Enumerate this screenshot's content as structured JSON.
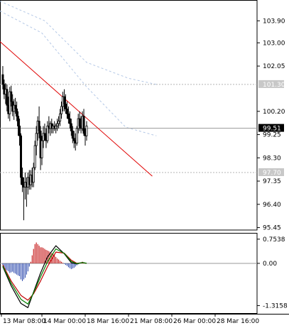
{
  "colors": {
    "background": "#ffffff",
    "frame": "#000000",
    "candle_body": "#000000",
    "candle_wick": "#000000",
    "trendline": "#e00000",
    "ma_slow": "#b4c8e6",
    "ma_fast": "#b4c8e6",
    "level_line": "#b4b4b4",
    "current_price_line": "#9a9a9a",
    "current_price_tag": "#000000",
    "level_tag": "#c8c8c8",
    "hist_positive": "#c00000",
    "hist_negative": "#1f3ea8",
    "macd_line": "#000000",
    "signal_line": "#c00000",
    "third_line": "#008000",
    "zero_line": "#9a9a9a"
  },
  "chart_data": [
    {
      "type": "candlestick",
      "panel": "price",
      "y_tick_labels": [
        "103.90",
        "103.00",
        "102.05",
        "100.20",
        "99.25",
        "98.30",
        "97.35",
        "96.40",
        "95.45"
      ],
      "y_ticks": [
        103.9,
        103.0,
        102.05,
        100.2,
        99.25,
        98.3,
        97.35,
        96.4,
        95.45
      ],
      "ylim": [
        95.35,
        104.75
      ],
      "x_tick_labels": [
        "13 Mar 08:00",
        "14 Mar 00:00",
        "18 Mar 16:00",
        "21 Mar 08:00",
        "26 Mar 00:00",
        "28 Mar 16:00"
      ],
      "x_ticks": [
        -1,
        28,
        59,
        90,
        121,
        152
      ],
      "xlim": [
        -2,
        182
      ],
      "candles_ohlc": [
        [
          101.7,
          102.05,
          101.1,
          101.3
        ],
        [
          101.3,
          101.5,
          100.7,
          100.9
        ],
        [
          100.9,
          101.35,
          100.5,
          101.1
        ],
        [
          101.1,
          101.3,
          100.2,
          100.45
        ],
        [
          100.45,
          100.8,
          99.9,
          100.1
        ],
        [
          100.1,
          101.2,
          99.8,
          101.0
        ],
        [
          101.0,
          101.25,
          100.4,
          100.6
        ],
        [
          100.6,
          100.9,
          100.0,
          100.2
        ],
        [
          100.2,
          100.7,
          99.85,
          100.45
        ],
        [
          100.45,
          100.75,
          100.1,
          100.3
        ],
        [
          100.3,
          100.6,
          99.8,
          100.0
        ],
        [
          100.0,
          100.2,
          99.2,
          99.6
        ],
        [
          99.6,
          99.9,
          98.8,
          99.2
        ],
        [
          99.2,
          99.3,
          97.2,
          97.5
        ],
        [
          97.5,
          97.9,
          96.9,
          97.2
        ],
        [
          97.2,
          97.5,
          95.75,
          97.1
        ],
        [
          97.1,
          97.7,
          96.6,
          97.3
        ],
        [
          97.3,
          97.5,
          96.3,
          97.1
        ],
        [
          97.1,
          97.7,
          96.8,
          97.5
        ],
        [
          97.5,
          97.8,
          97.0,
          97.2
        ],
        [
          97.2,
          97.8,
          97.0,
          97.6
        ],
        [
          97.6,
          97.9,
          97.1,
          97.3
        ],
        [
          97.3,
          98.1,
          97.1,
          97.9
        ],
        [
          97.9,
          99.0,
          97.8,
          98.8
        ],
        [
          98.8,
          99.6,
          98.4,
          99.3
        ],
        [
          99.3,
          100.0,
          99.0,
          99.8
        ],
        [
          99.8,
          100.4,
          99.1,
          99.4
        ],
        [
          99.4,
          99.6,
          97.8,
          98.3
        ],
        [
          98.3,
          99.2,
          98.0,
          99.0
        ],
        [
          99.0,
          99.6,
          98.7,
          99.3
        ],
        [
          99.3,
          99.7,
          99.0,
          99.2
        ],
        [
          99.2,
          99.5,
          98.7,
          99.0
        ],
        [
          99.0,
          99.8,
          98.9,
          99.6
        ],
        [
          99.6,
          100.0,
          99.3,
          99.5
        ],
        [
          99.5,
          99.8,
          99.2,
          99.7
        ],
        [
          99.7,
          99.9,
          99.3,
          99.5
        ],
        [
          99.5,
          99.7,
          99.3,
          99.6
        ],
        [
          99.6,
          99.8,
          99.4,
          99.5
        ],
        [
          99.5,
          99.7,
          99.3,
          99.6
        ],
        [
          99.6,
          99.9,
          99.4,
          99.7
        ],
        [
          99.7,
          100.0,
          99.5,
          99.8
        ],
        [
          99.8,
          100.3,
          99.6,
          100.1
        ],
        [
          100.1,
          100.6,
          99.9,
          100.4
        ],
        [
          100.4,
          101.0,
          100.2,
          100.8
        ],
        [
          100.8,
          101.1,
          100.2,
          100.5
        ],
        [
          100.5,
          100.9,
          100.1,
          100.3
        ],
        [
          100.3,
          100.6,
          99.9,
          100.1
        ],
        [
          100.1,
          100.4,
          99.7,
          99.9
        ],
        [
          99.9,
          100.2,
          99.5,
          99.7
        ],
        [
          99.7,
          99.9,
          99.2,
          99.4
        ],
        [
          99.4,
          99.6,
          98.9,
          99.1
        ],
        [
          99.1,
          99.4,
          98.7,
          99.0
        ],
        [
          99.0,
          99.3,
          98.6,
          98.9
        ],
        [
          98.9,
          99.6,
          98.8,
          99.5
        ],
        [
          99.5,
          100.1,
          99.3,
          99.9
        ],
        [
          99.9,
          100.2,
          99.4,
          99.6
        ],
        [
          99.6,
          100.0,
          99.3,
          99.5
        ],
        [
          99.5,
          100.2,
          99.4,
          100.0
        ],
        [
          100.0,
          100.3,
          99.2,
          99.3
        ],
        [
          99.3,
          99.5,
          98.8,
          99.2
        ],
        [
          99.2,
          99.8,
          99.0,
          99.6
        ]
      ],
      "trendline": {
        "x": [
          -2,
          107
        ],
        "y": [
          103.05,
          97.55
        ]
      },
      "moving_averages": [
        {
          "x": [
            -2,
            30,
            60,
            90,
            110
          ],
          "y": [
            104.7,
            103.9,
            102.2,
            101.55,
            101.3
          ]
        },
        {
          "x": [
            -2,
            28,
            60,
            88,
            110
          ],
          "y": [
            104.3,
            103.4,
            101.2,
            99.55,
            99.2
          ]
        }
      ],
      "price_tags": [
        {
          "label": "101.30",
          "value": 101.3,
          "kind": "level"
        },
        {
          "label": "99.51",
          "value": 99.51,
          "kind": "current"
        },
        {
          "label": "97.70",
          "value": 97.7,
          "kind": "level"
        }
      ]
    },
    {
      "type": "histogram+line",
      "panel": "macd",
      "y_tick_labels": [
        "0.7538",
        "0.00",
        "-1.3158"
      ],
      "y_ticks": [
        0.7538,
        0.0,
        -1.3158
      ],
      "ylim": [
        -1.55,
        0.95
      ],
      "histogram": {
        "x": [
          0,
          1,
          2,
          3,
          4,
          5,
          6,
          7,
          8,
          9,
          10,
          11,
          12,
          13,
          14,
          15,
          16,
          17,
          18,
          19,
          20,
          21,
          22,
          23,
          24,
          25,
          26,
          27,
          28,
          29,
          30,
          31,
          32,
          33,
          34,
          35,
          36,
          37,
          38,
          39,
          40,
          41,
          42,
          43,
          44,
          45,
          46,
          47,
          48,
          49,
          50,
          51,
          52,
          53,
          54,
          55,
          56,
          57,
          58,
          59,
          60
        ],
        "values": [
          -0.05,
          -0.15,
          -0.2,
          -0.22,
          -0.25,
          -0.3,
          -0.28,
          -0.26,
          -0.3,
          -0.32,
          -0.35,
          -0.38,
          -0.4,
          -0.5,
          -0.55,
          -0.5,
          -0.45,
          -0.35,
          -0.25,
          -0.1,
          0.05,
          0.25,
          0.45,
          0.6,
          0.65,
          0.6,
          0.55,
          0.5,
          0.5,
          0.48,
          0.45,
          0.42,
          0.4,
          0.38,
          0.35,
          0.32,
          0.3,
          0.25,
          0.2,
          0.15,
          0.12,
          0.08,
          0.05,
          0.02,
          -0.02,
          -0.05,
          -0.08,
          -0.12,
          -0.15,
          -0.18,
          -0.16,
          -0.14,
          -0.1,
          -0.06,
          -0.03,
          0.0,
          0.02,
          0.05,
          0.03,
          0.01,
          0.0
        ]
      },
      "lines": [
        {
          "x": [
            0,
            6,
            13,
            18,
            22,
            27,
            32,
            38,
            44,
            49,
            53,
            57,
            60
          ],
          "y": [
            -0.1,
            -0.7,
            -1.25,
            -1.38,
            -0.9,
            -0.3,
            0.2,
            0.55,
            0.3,
            0.02,
            -0.02,
            0.03,
            0.0
          ]
        },
        {
          "x": [
            0,
            6,
            13,
            18,
            22,
            27,
            32,
            38,
            44,
            49,
            53,
            57,
            60
          ],
          "y": [
            -0.05,
            -0.55,
            -1.0,
            -1.15,
            -0.95,
            -0.55,
            -0.1,
            0.35,
            0.32,
            0.1,
            0.0,
            0.02,
            0.0
          ]
        },
        {
          "x": [
            0,
            6,
            13,
            18,
            22,
            27,
            32,
            38,
            44,
            49,
            53,
            57,
            60
          ],
          "y": [
            -0.08,
            -0.62,
            -1.12,
            -1.27,
            -0.92,
            -0.42,
            0.05,
            0.45,
            0.31,
            0.06,
            -0.01,
            0.025,
            0.0
          ]
        }
      ]
    }
  ]
}
